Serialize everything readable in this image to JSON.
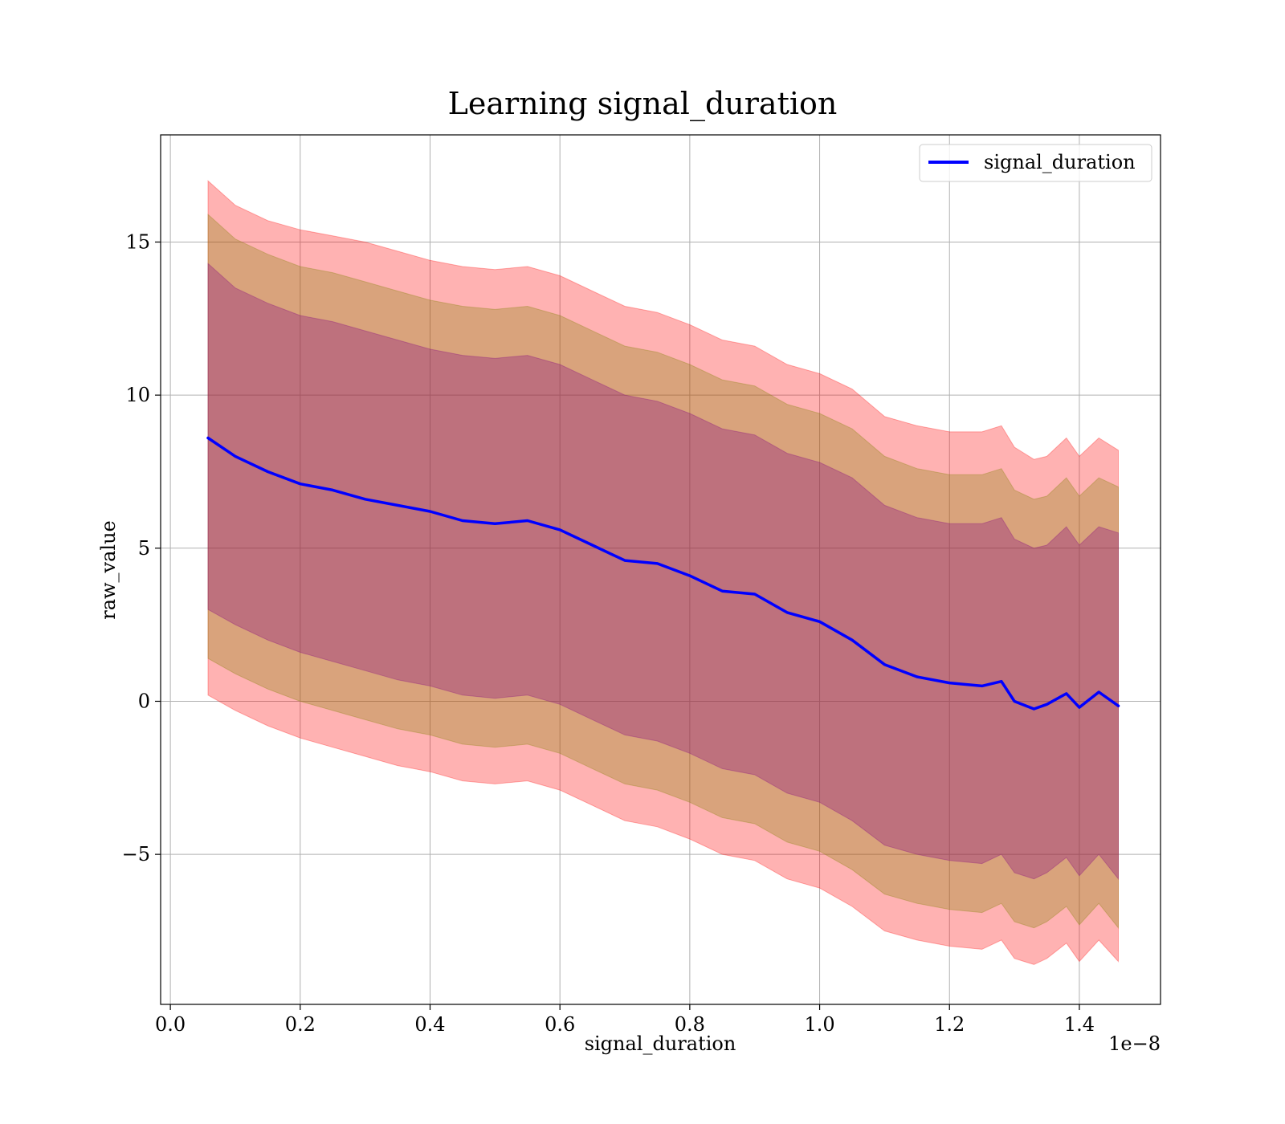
{
  "chart_data": {
    "type": "line",
    "title": "Learning signal_duration",
    "xlabel": "signal_duration",
    "ylabel": "raw_value",
    "x_offset_label": "1e−8",
    "xlim": [
      -0.015,
      1.525
    ],
    "ylim": [
      -9.9,
      18.5
    ],
    "xticks": [
      0.0,
      0.2,
      0.4,
      0.6,
      0.8,
      1.0,
      1.2,
      1.4
    ],
    "xtick_labels": [
      "0.0",
      "0.2",
      "0.4",
      "0.6",
      "0.8",
      "1.0",
      "1.2",
      "1.4"
    ],
    "yticks": [
      -5,
      0,
      5,
      10,
      15
    ],
    "ytick_labels": [
      "−5",
      "0",
      "5",
      "10",
      "15"
    ],
    "grid": true,
    "legend_position": "top-right",
    "colors": {
      "line": "#0000ff",
      "band_outer": "#ff0000",
      "band_middle": "#808000",
      "band_inner": "#800080"
    },
    "x": [
      0.058,
      0.1,
      0.15,
      0.2,
      0.25,
      0.3,
      0.35,
      0.4,
      0.45,
      0.5,
      0.55,
      0.6,
      0.65,
      0.7,
      0.75,
      0.8,
      0.85,
      0.9,
      0.95,
      1.0,
      1.05,
      1.1,
      1.15,
      1.2,
      1.25,
      1.28,
      1.3,
      1.33,
      1.35,
      1.38,
      1.4,
      1.43,
      1.46
    ],
    "series": [
      {
        "name": "signal_duration",
        "values": [
          8.6,
          8.0,
          7.5,
          7.1,
          6.9,
          6.6,
          6.4,
          6.2,
          5.9,
          5.8,
          5.9,
          5.6,
          5.1,
          4.6,
          4.5,
          4.1,
          3.6,
          3.5,
          2.9,
          2.6,
          2.0,
          1.2,
          0.8,
          0.6,
          0.5,
          0.65,
          0.0,
          -0.25,
          -0.1,
          0.25,
          -0.2,
          0.3,
          -0.15
        ]
      }
    ],
    "bands": [
      {
        "color": "band_outer",
        "upper": [
          17.0,
          16.2,
          15.7,
          15.4,
          15.2,
          15.0,
          14.7,
          14.4,
          14.2,
          14.1,
          14.2,
          13.9,
          13.4,
          12.9,
          12.7,
          12.3,
          11.8,
          11.6,
          11.0,
          10.7,
          10.2,
          9.3,
          9.0,
          8.8,
          8.8,
          9.0,
          8.3,
          7.9,
          8.0,
          8.6,
          8.0,
          8.6,
          8.2
        ],
        "lower": [
          0.2,
          -0.3,
          -0.8,
          -1.2,
          -1.5,
          -1.8,
          -2.1,
          -2.3,
          -2.6,
          -2.7,
          -2.6,
          -2.9,
          -3.4,
          -3.9,
          -4.1,
          -4.5,
          -5.0,
          -5.2,
          -5.8,
          -6.1,
          -6.7,
          -7.5,
          -7.8,
          -8.0,
          -8.1,
          -7.8,
          -8.4,
          -8.6,
          -8.4,
          -7.9,
          -8.5,
          -7.8,
          -8.5
        ]
      },
      {
        "color": "band_middle",
        "upper": [
          15.9,
          15.1,
          14.6,
          14.2,
          14.0,
          13.7,
          13.4,
          13.1,
          12.9,
          12.8,
          12.9,
          12.6,
          12.1,
          11.6,
          11.4,
          11.0,
          10.5,
          10.3,
          9.7,
          9.4,
          8.9,
          8.0,
          7.6,
          7.4,
          7.4,
          7.6,
          6.9,
          6.6,
          6.7,
          7.3,
          6.7,
          7.3,
          7.0
        ],
        "lower": [
          1.4,
          0.9,
          0.4,
          0.0,
          -0.3,
          -0.6,
          -0.9,
          -1.1,
          -1.4,
          -1.5,
          -1.4,
          -1.7,
          -2.2,
          -2.7,
          -2.9,
          -3.3,
          -3.8,
          -4.0,
          -4.6,
          -4.9,
          -5.5,
          -6.3,
          -6.6,
          -6.8,
          -6.9,
          -6.6,
          -7.2,
          -7.4,
          -7.2,
          -6.7,
          -7.3,
          -6.6,
          -7.4
        ]
      },
      {
        "color": "band_inner",
        "upper": [
          14.3,
          13.5,
          13.0,
          12.6,
          12.4,
          12.1,
          11.8,
          11.5,
          11.3,
          11.2,
          11.3,
          11.0,
          10.5,
          10.0,
          9.8,
          9.4,
          8.9,
          8.7,
          8.1,
          7.8,
          7.3,
          6.4,
          6.0,
          5.8,
          5.8,
          6.0,
          5.3,
          5.0,
          5.1,
          5.7,
          5.1,
          5.7,
          5.5
        ],
        "lower": [
          3.0,
          2.5,
          2.0,
          1.6,
          1.3,
          1.0,
          0.7,
          0.5,
          0.2,
          0.1,
          0.2,
          -0.1,
          -0.6,
          -1.1,
          -1.3,
          -1.7,
          -2.2,
          -2.4,
          -3.0,
          -3.3,
          -3.9,
          -4.7,
          -5.0,
          -5.2,
          -5.3,
          -5.0,
          -5.6,
          -5.8,
          -5.6,
          -5.1,
          -5.7,
          -5.0,
          -5.8
        ]
      }
    ]
  }
}
